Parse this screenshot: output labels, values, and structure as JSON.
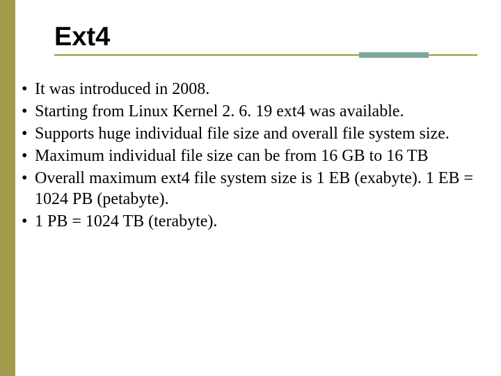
{
  "slide": {
    "title": "Ext4",
    "bullets": [
      "It was introduced in 2008.",
      "Starting from Linux Kernel 2. 6. 19 ext4 was available.",
      "Supports huge individual file size and overall file system size.",
      "Maximum individual file size can be from 16 GB to 16 TB",
      "Overall maximum ext4 file system size is 1 EB (exabyte). 1 EB = 1024 PB (petabyte).",
      " 1 PB = 1024 TB (terabyte)."
    ],
    "colors": {
      "sidebar": "#a39a4c",
      "underline": "#9a982e",
      "accent": "#7aa899",
      "text": "#000000",
      "background": "#ffffff"
    }
  }
}
